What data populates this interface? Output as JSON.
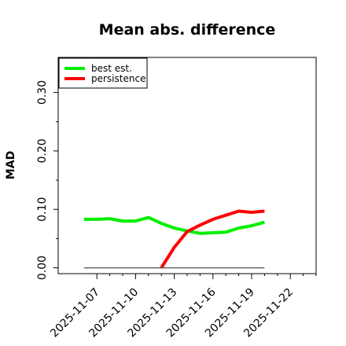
{
  "chart_data": {
    "type": "line",
    "title": "Mean abs. difference",
    "xlabel": "",
    "ylabel": "MAD",
    "x_ticks": [
      "2025-11-07",
      "2025-11-10",
      "2025-11-13",
      "2025-11-16",
      "2025-11-19",
      "2025-11-22"
    ],
    "y_ticks": [
      "0.00",
      "0.10",
      "0.20",
      "0.30"
    ],
    "xlim": [
      "2025-11-04",
      "2025-11-24"
    ],
    "ylim": [
      -0.01,
      0.36
    ],
    "grid": false,
    "legend_position": "top-left",
    "series": [
      {
        "name": "best est.",
        "color": "#00ee00",
        "x": [
          "2025-11-06",
          "2025-11-07",
          "2025-11-08",
          "2025-11-09",
          "2025-11-10",
          "2025-11-11",
          "2025-11-12",
          "2025-11-13",
          "2025-11-14",
          "2025-11-15",
          "2025-11-16",
          "2025-11-17",
          "2025-11-18",
          "2025-11-19",
          "2025-11-20"
        ],
        "values": [
          0.083,
          0.083,
          0.084,
          0.08,
          0.08,
          0.086,
          0.076,
          0.068,
          0.063,
          0.059,
          0.06,
          0.061,
          0.068,
          0.072,
          0.078
        ]
      },
      {
        "name": "persistence",
        "color": "#ff0000",
        "x": [
          "2025-11-12",
          "2025-11-13",
          "2025-11-14",
          "2025-11-15",
          "2025-11-16",
          "2025-11-17",
          "2025-11-18",
          "2025-11-19",
          "2025-11-20"
        ],
        "values": [
          0.0,
          0.035,
          0.062,
          0.073,
          0.083,
          0.09,
          0.097,
          0.095,
          0.097
        ]
      },
      {
        "name": "",
        "color": "#555555",
        "x": [
          "2025-11-06",
          "2025-11-20"
        ],
        "values": [
          0.0,
          0.0
        ]
      }
    ]
  }
}
